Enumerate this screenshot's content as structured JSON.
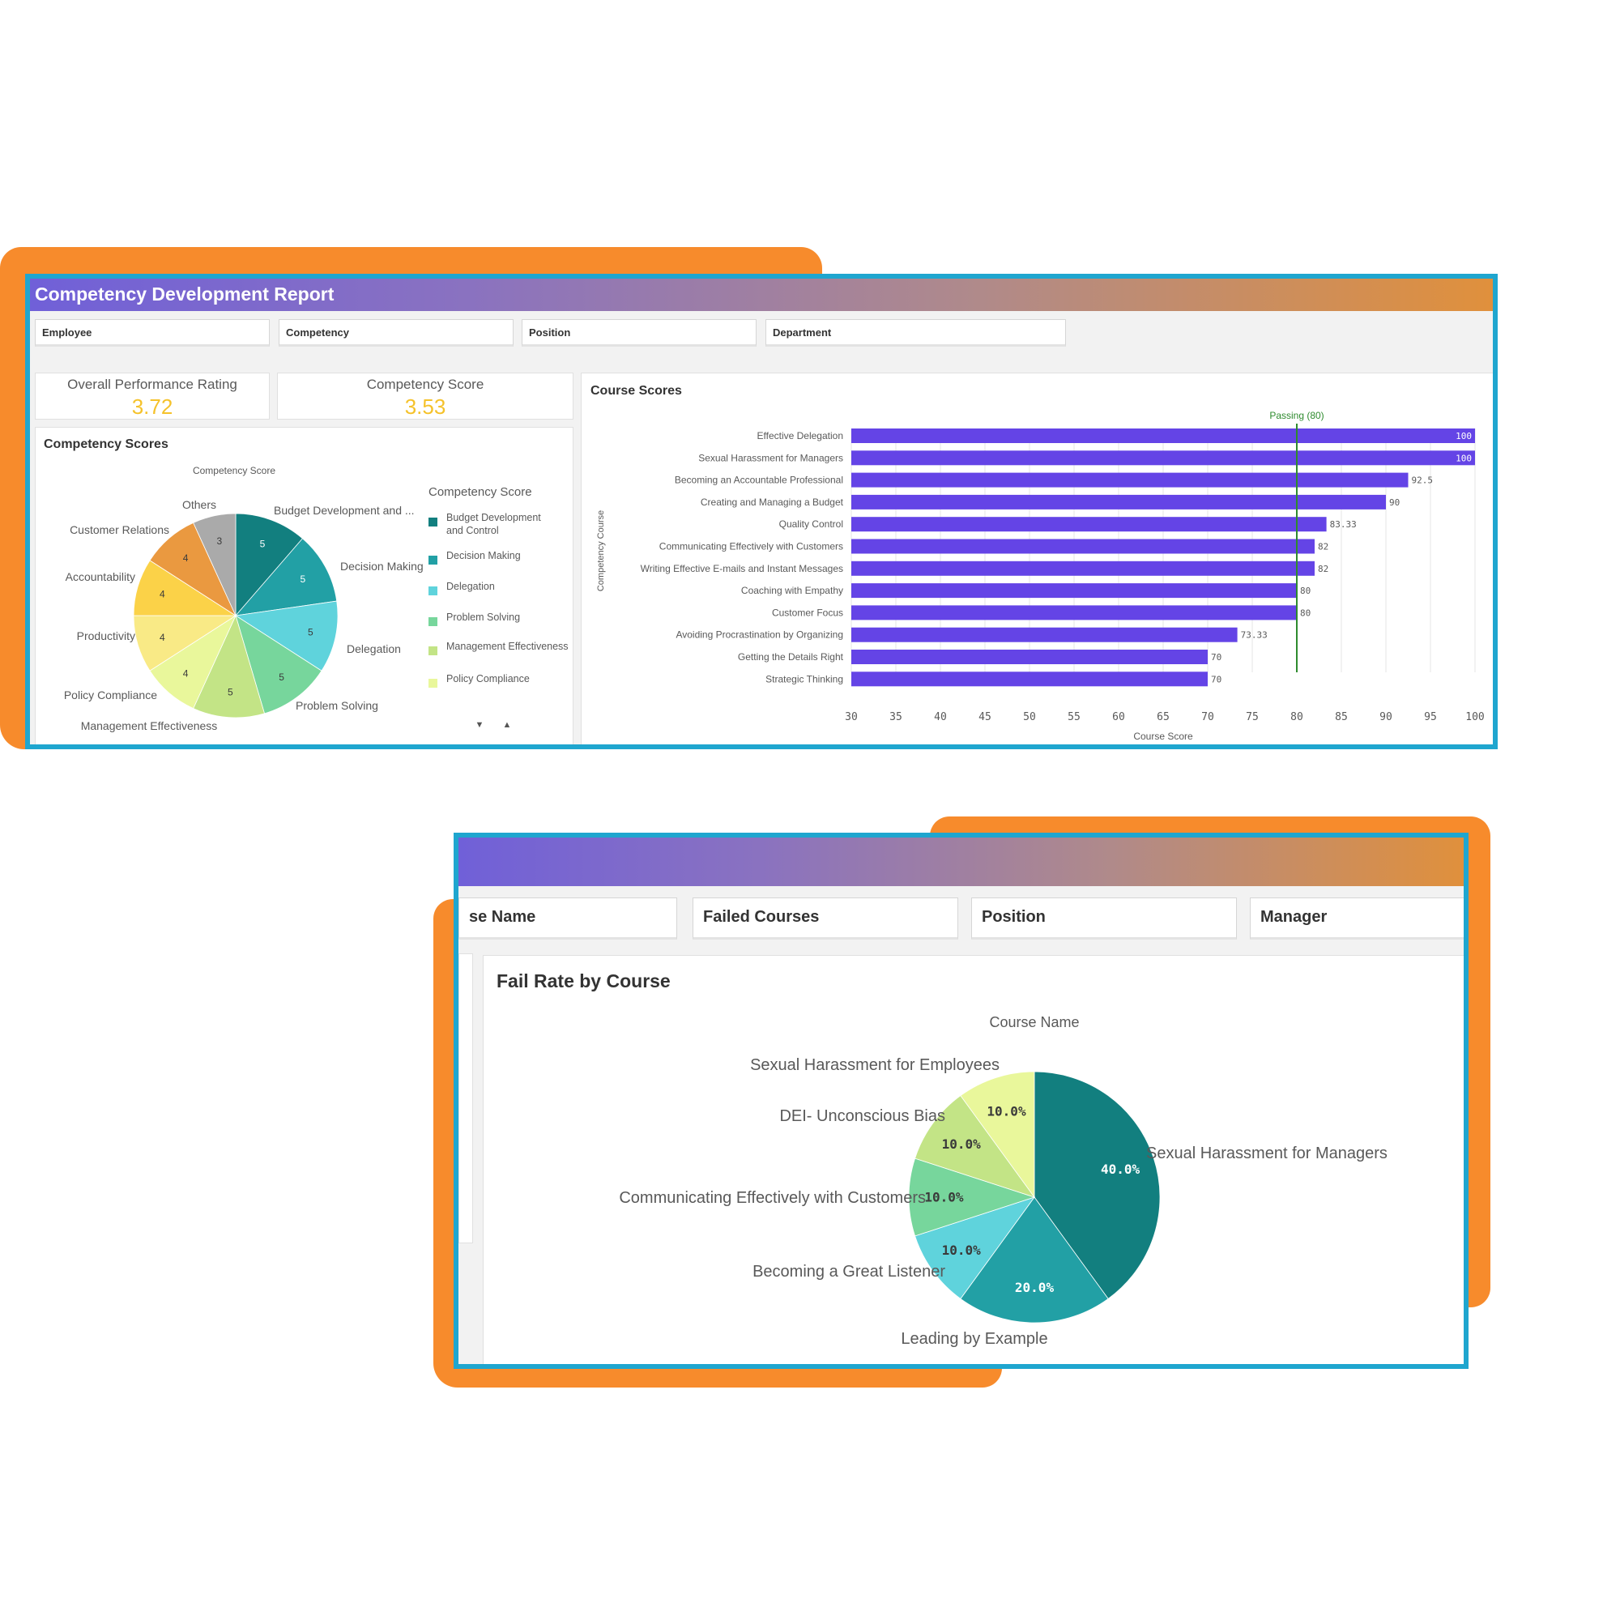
{
  "report1": {
    "title": "Competency Development Report",
    "filters": [
      "Employee",
      "Competency",
      "Position",
      "Department"
    ],
    "kpis": [
      {
        "label": "Overall Performance Rating",
        "value": "3.72"
      },
      {
        "label": "Competency Score",
        "value": "3.53"
      }
    ],
    "competency_panel": {
      "title": "Competency Scores",
      "chart_subtitle": "Competency Score",
      "legend_title": "Competency Score",
      "legend": [
        "Budget Development and Control",
        "Decision Making",
        "Delegation",
        "Problem Solving",
        "Management Effectiveness",
        "Policy Compliance"
      ],
      "scroll_down": "▼",
      "scroll_up": "▲"
    },
    "course_panel": {
      "title": "Course Scores"
    }
  },
  "report2": {
    "filters": [
      "se Name",
      "Failed Courses",
      "Position",
      "Manager"
    ],
    "panel_title": "Fail Rate by Course"
  },
  "colors": {
    "frame_border": "#1fa6cf",
    "accent_orange": "#f78b2c",
    "bar": "#6444e6",
    "kpi_value": "#f5c22b",
    "reference_line": "#2e8b2e"
  },
  "chart_data": [
    {
      "type": "pie",
      "title": "Competency Scores",
      "subtitle": "Competency Score",
      "categories": [
        "Budget Development and ...",
        "Decision Making",
        "Delegation",
        "Problem Solving",
        "Management Effectiveness",
        "Policy Compliance",
        "Productivity",
        "Accountability",
        "Customer Relations",
        "Others"
      ],
      "values": [
        5,
        5,
        5,
        5,
        5,
        4,
        4,
        4,
        4,
        3
      ],
      "colors": [
        "#127f7f",
        "#22a0a5",
        "#5fd3dc",
        "#77d69c",
        "#c3e486",
        "#e9f79b",
        "#f9ea86",
        "#fbd248",
        "#ea9940",
        "#aaaaaa"
      ],
      "legend_title": "Competency Score",
      "legend": [
        "Budget Development and Control",
        "Decision Making",
        "Delegation",
        "Problem Solving",
        "Management Effectiveness",
        "Policy Compliance"
      ],
      "legend_position": "right"
    },
    {
      "type": "bar",
      "orientation": "horizontal",
      "title": "Course Scores",
      "categories": [
        "Effective Delegation",
        "Sexual Harassment for Managers",
        "Becoming an Accountable Professional",
        "Creating and Managing a Budget",
        "Quality Control",
        "Communicating Effectively with Customers",
        "Writing Effective E-mails and Instant Messages",
        "Coaching with Empathy",
        "Customer Focus",
        "Avoiding Procrastination by Organizing",
        "Getting the Details Right",
        "Strategic Thinking"
      ],
      "values": [
        100,
        100,
        92.5,
        90,
        83.33,
        82,
        82,
        80,
        80,
        73.33,
        70,
        70
      ],
      "value_labels": [
        "100",
        "100",
        "92.5",
        "90",
        "83.33",
        "82",
        "82",
        "80",
        "80",
        "73.33",
        "70",
        "70"
      ],
      "xlabel": "Course Score",
      "ylabel": "Competency Course",
      "xlim": [
        30,
        100
      ],
      "xticks": [
        30,
        35,
        40,
        45,
        50,
        55,
        60,
        65,
        70,
        75,
        80,
        85,
        90,
        95,
        100
      ],
      "reference_line": {
        "value": 80,
        "label": "Passing (80)"
      },
      "grid": true
    },
    {
      "type": "pie",
      "title": "Fail Rate by Course",
      "subtitle": "Course Name",
      "categories": [
        "Sexual Harassment for Managers",
        "Leading by Example",
        "Becoming a Great Listener",
        "Communicating Effectively with Customers",
        "DEI- Unconscious Bias",
        "Sexual Harassment for Employees"
      ],
      "values": [
        40,
        20,
        10,
        10,
        10,
        10
      ],
      "value_labels": [
        "40.0%",
        "20.0%",
        "10.0%",
        "10.0%",
        "10.0%",
        "10.0%"
      ],
      "colors": [
        "#127f7f",
        "#22a0a5",
        "#5fd3dc",
        "#77d69c",
        "#c3e486",
        "#e9f79b"
      ]
    }
  ]
}
